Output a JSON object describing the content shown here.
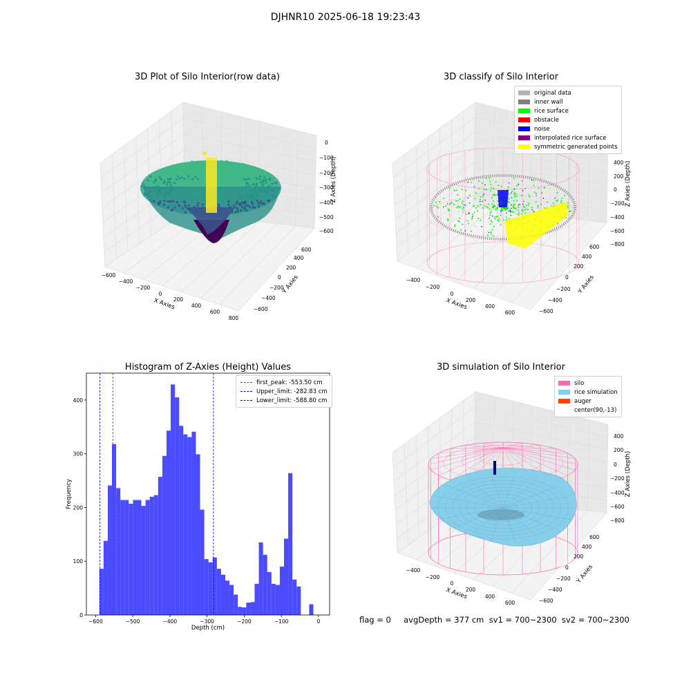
{
  "figure_title": "DJHNR10 2025-06-18 19:23:43",
  "status_line": "flag = 0     avgDepth = 377 cm  sv1 = 700~2300  sv2 = 700~2300",
  "colors": {
    "original": "#b3b3b3",
    "inner_wall": "#808080",
    "rice_surface": "#00ff00",
    "obstacle": "#ff0000",
    "noise": "#0000ff",
    "interpolated": "#800080",
    "symmetric": "#ffff00",
    "silo": "#ff69b4",
    "rice_sim": "#87ceeb",
    "auger": "#ff4500",
    "hist_bar": "#4b4bff"
  },
  "chart_data": [
    {
      "type": "scatter",
      "subtype": "3d",
      "title": "3D Plot of Silo Interior(row data)",
      "xlabel": "X Axies",
      "ylabel": "Y Axies",
      "zlabel": "Z Axies (Depth)",
      "x_ticks": [
        "−600",
        "−400",
        "−200",
        "0",
        "200",
        "400",
        "600",
        "800"
      ],
      "y_ticks": [
        "−600",
        "−400",
        "−200",
        "0",
        "200",
        "400",
        "600"
      ],
      "z_ticks": [
        "0",
        "−100",
        "−200",
        "−300",
        "−400",
        "−500",
        "−600"
      ],
      "colormap": "viridis"
    },
    {
      "type": "scatter",
      "subtype": "3d",
      "title": "3D classify of Silo Interior",
      "xlabel": "X Axies",
      "ylabel": "Y Axies",
      "zlabel": "Z Axies (Depth)",
      "x_ticks": [
        "−400",
        "−200",
        "0",
        "200",
        "400",
        "600"
      ],
      "y_ticks": [
        "−600",
        "−400",
        "−200",
        "0",
        "200",
        "400",
        "600"
      ],
      "z_ticks": [
        "400",
        "200",
        "0",
        "−200",
        "−400",
        "−600",
        "−800"
      ],
      "legend": [
        "original data",
        "inner wall",
        "rice surface",
        "obstacle",
        "noise",
        "interpolated rice surface",
        "symmetric generated points"
      ]
    },
    {
      "type": "bar",
      "subtype": "histogram",
      "title": "Histogram of Z-Axies (Height) Values",
      "xlabel": "Depth (cm)",
      "ylabel": "Frequency",
      "xlim": [
        -625,
        30
      ],
      "ylim": [
        0,
        450
      ],
      "x_ticks": [
        -600,
        -500,
        -400,
        -300,
        -200,
        -100,
        0
      ],
      "x_tick_labels": [
        "−600",
        "−500",
        "−400",
        "−300",
        "−200",
        "−100",
        "0"
      ],
      "y_ticks": [
        0,
        100,
        200,
        300,
        400
      ],
      "bin_width": 11.3,
      "bin_start": -590,
      "values": [
        86,
        138,
        241,
        318,
        236,
        214,
        214,
        207,
        214,
        214,
        203,
        214,
        220,
        223,
        257,
        296,
        343,
        429,
        405,
        352,
        336,
        331,
        341,
        299,
        196,
        104,
        98,
        107,
        86,
        75,
        64,
        56,
        38,
        15,
        14,
        23,
        24,
        58,
        135,
        112,
        80,
        58,
        56,
        90,
        142,
        264,
        66,
        53,
        0,
        0,
        20
      ],
      "lines": [
        {
          "label": "first_peak: -553.50 cm",
          "x": -553.5,
          "color": "#ff0000"
        },
        {
          "label": "Upper_limit: -282.83 cm",
          "x": -282.83,
          "color": "#0000ff"
        },
        {
          "label": "Lower_limit: -588.80 cm",
          "x": -588.8,
          "color": "#0000ff"
        }
      ]
    },
    {
      "type": "area",
      "subtype": "3d-surface",
      "title": "3D simulation of Silo Interior",
      "xlabel": "X Axies",
      "ylabel": "Y Axies",
      "zlabel": "Z Axies (Depth)",
      "x_ticks": [
        "−400",
        "−200",
        "0",
        "200",
        "400",
        "600"
      ],
      "y_ticks": [
        "−600",
        "−400",
        "−200",
        "0",
        "200",
        "400",
        "600"
      ],
      "z_ticks": [
        "400",
        "200",
        "0",
        "−200",
        "−400",
        "−600",
        "−800"
      ],
      "legend": [
        "silo",
        "rice simulation",
        "auger",
        "center(90,-13)"
      ]
    }
  ]
}
